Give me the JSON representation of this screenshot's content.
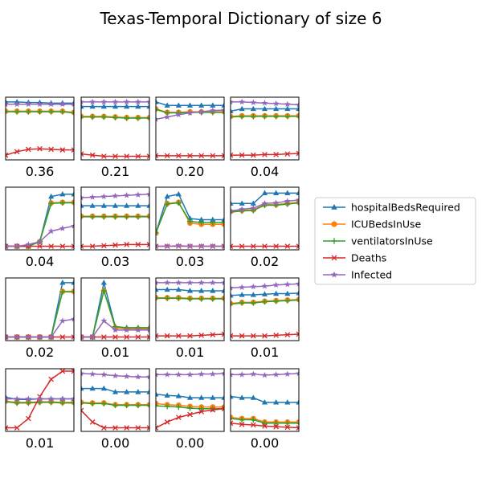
{
  "chart_data": {
    "type": "line",
    "title": "Texas-Temporal Dictionary of size 6",
    "x": [
      0,
      1,
      2,
      3,
      4,
      5,
      6
    ],
    "ylim": [
      0,
      1
    ],
    "grid": false,
    "legend_placement": "right",
    "series_styles": [
      {
        "key": "hospitalBedsRequired",
        "name": "hospitalBedsRequired",
        "color": "#1f77b4",
        "marker": "triangle"
      },
      {
        "key": "ICUBedsInUse",
        "name": "ICUBedsInUse",
        "color": "#ff7f0e",
        "marker": "circle"
      },
      {
        "key": "ventilatorsInUse",
        "name": "ventilatorsInUse",
        "color": "#2ca02c",
        "marker": "plus"
      },
      {
        "key": "Deaths",
        "name": "Deaths",
        "color": "#d62728",
        "marker": "x"
      },
      {
        "key": "Infected",
        "name": "Infected",
        "color": "#9467bd",
        "marker": "star"
      }
    ],
    "panels": [
      {
        "label": "0.36",
        "series": {
          "hospitalBedsRequired": [
            0.96,
            0.96,
            0.95,
            0.95,
            0.94,
            0.94,
            0.94
          ],
          "ICUBedsInUse": [
            0.8,
            0.8,
            0.8,
            0.8,
            0.8,
            0.8,
            0.78
          ],
          "ventilatorsInUse": [
            0.79,
            0.79,
            0.79,
            0.79,
            0.79,
            0.79,
            0.77
          ],
          "Deaths": [
            0.04,
            0.1,
            0.14,
            0.15,
            0.14,
            0.13,
            0.13
          ],
          "Infected": [
            0.92,
            0.92,
            0.92,
            0.92,
            0.92,
            0.92,
            0.92
          ]
        }
      },
      {
        "label": "0.21",
        "series": {
          "hospitalBedsRequired": [
            0.88,
            0.88,
            0.88,
            0.88,
            0.88,
            0.88,
            0.88
          ],
          "ICUBedsInUse": [
            0.71,
            0.71,
            0.71,
            0.7,
            0.69,
            0.69,
            0.69
          ],
          "ventilatorsInUse": [
            0.7,
            0.7,
            0.7,
            0.69,
            0.68,
            0.68,
            0.68
          ],
          "Deaths": [
            0.06,
            0.04,
            0.02,
            0.02,
            0.02,
            0.02,
            0.02
          ],
          "Infected": [
            0.96,
            0.96,
            0.96,
            0.96,
            0.96,
            0.96,
            0.96
          ]
        }
      },
      {
        "label": "0.20",
        "series": {
          "hospitalBedsRequired": [
            0.96,
            0.9,
            0.9,
            0.9,
            0.9,
            0.9,
            0.9
          ],
          "ICUBedsInUse": [
            0.84,
            0.78,
            0.78,
            0.79,
            0.79,
            0.79,
            0.79
          ],
          "ventilatorsInUse": [
            0.83,
            0.77,
            0.77,
            0.78,
            0.78,
            0.78,
            0.78
          ],
          "Deaths": [
            0.03,
            0.03,
            0.03,
            0.03,
            0.03,
            0.03,
            0.03
          ],
          "Infected": [
            0.66,
            0.7,
            0.74,
            0.77,
            0.79,
            0.81,
            0.82
          ]
        }
      },
      {
        "label": "0.04",
        "series": {
          "hospitalBedsRequired": [
            0.8,
            0.84,
            0.84,
            0.84,
            0.84,
            0.84,
            0.84
          ],
          "ICUBedsInUse": [
            0.71,
            0.72,
            0.72,
            0.72,
            0.72,
            0.72,
            0.72
          ],
          "ventilatorsInUse": [
            0.7,
            0.71,
            0.71,
            0.71,
            0.71,
            0.71,
            0.71
          ],
          "Deaths": [
            0.04,
            0.04,
            0.04,
            0.05,
            0.05,
            0.06,
            0.07
          ],
          "Infected": [
            0.96,
            0.96,
            0.95,
            0.94,
            0.93,
            0.92,
            0.91
          ]
        }
      },
      {
        "label": "0.04",
        "series": {
          "hospitalBedsRequired": [
            0.02,
            0.02,
            0.02,
            0.1,
            0.88,
            0.92,
            0.92
          ],
          "ICUBedsInUse": [
            0.02,
            0.02,
            0.02,
            0.1,
            0.77,
            0.78,
            0.78
          ],
          "ventilatorsInUse": [
            0.02,
            0.02,
            0.02,
            0.1,
            0.76,
            0.77,
            0.77
          ],
          "Deaths": [
            0.02,
            0.02,
            0.02,
            0.02,
            0.02,
            0.02,
            0.02
          ],
          "Infected": [
            0.02,
            0.02,
            0.05,
            0.1,
            0.28,
            0.33,
            0.37
          ]
        }
      },
      {
        "label": "0.03",
        "series": {
          "hospitalBedsRequired": [
            0.72,
            0.72,
            0.72,
            0.72,
            0.72,
            0.72,
            0.72
          ],
          "ICUBedsInUse": [
            0.54,
            0.54,
            0.54,
            0.54,
            0.54,
            0.54,
            0.54
          ],
          "ventilatorsInUse": [
            0.53,
            0.53,
            0.53,
            0.53,
            0.53,
            0.53,
            0.53
          ],
          "Deaths": [
            0.02,
            0.02,
            0.03,
            0.04,
            0.05,
            0.05,
            0.05
          ],
          "Infected": [
            0.86,
            0.87,
            0.88,
            0.89,
            0.9,
            0.91,
            0.92
          ]
        }
      },
      {
        "label": "0.03",
        "series": {
          "hospitalBedsRequired": [
            0.25,
            0.88,
            0.92,
            0.5,
            0.48,
            0.48,
            0.48
          ],
          "ICUBedsInUse": [
            0.25,
            0.76,
            0.78,
            0.42,
            0.4,
            0.4,
            0.4
          ],
          "ventilatorsInUse": [
            0.25,
            0.75,
            0.77,
            0.45,
            0.43,
            0.43,
            0.43
          ],
          "Deaths": [
            0.02,
            0.02,
            0.02,
            0.02,
            0.02,
            0.02,
            0.02
          ],
          "Infected": [
            0.02,
            0.02,
            0.03,
            0.02,
            0.02,
            0.02,
            0.02
          ]
        }
      },
      {
        "label": "0.02",
        "series": {
          "hospitalBedsRequired": [
            0.76,
            0.76,
            0.76,
            0.94,
            0.94,
            0.94,
            0.94
          ],
          "ICUBedsInUse": [
            0.62,
            0.64,
            0.65,
            0.74,
            0.74,
            0.76,
            0.78
          ],
          "ventilatorsInUse": [
            0.61,
            0.63,
            0.64,
            0.73,
            0.73,
            0.75,
            0.77
          ],
          "Deaths": [
            0.02,
            0.02,
            0.02,
            0.02,
            0.02,
            0.02,
            0.02
          ],
          "Infected": [
            0.63,
            0.66,
            0.68,
            0.76,
            0.77,
            0.8,
            0.82
          ]
        }
      },
      {
        "label": "0.02",
        "series": {
          "hospitalBedsRequired": [
            0.02,
            0.02,
            0.02,
            0.02,
            0.02,
            0.96,
            0.96
          ],
          "ICUBedsInUse": [
            0.02,
            0.02,
            0.02,
            0.02,
            0.02,
            0.81,
            0.81
          ],
          "ventilatorsInUse": [
            0.02,
            0.02,
            0.02,
            0.02,
            0.02,
            0.8,
            0.8
          ],
          "Deaths": [
            0.02,
            0.02,
            0.02,
            0.02,
            0.02,
            0.02,
            0.02
          ],
          "Infected": [
            0.02,
            0.02,
            0.02,
            0.02,
            0.02,
            0.3,
            0.33
          ]
        }
      },
      {
        "label": "0.01",
        "series": {
          "hospitalBedsRequired": [
            0.02,
            0.02,
            0.96,
            0.2,
            0.18,
            0.18,
            0.18
          ],
          "ICUBedsInUse": [
            0.02,
            0.02,
            0.82,
            0.18,
            0.16,
            0.16,
            0.16
          ],
          "ventilatorsInUse": [
            0.02,
            0.02,
            0.82,
            0.2,
            0.18,
            0.18,
            0.18
          ],
          "Deaths": [
            0.02,
            0.02,
            0.02,
            0.02,
            0.02,
            0.02,
            0.02
          ],
          "Infected": [
            0.02,
            0.02,
            0.3,
            0.14,
            0.14,
            0.14,
            0.14
          ]
        }
      },
      {
        "label": "0.01",
        "series": {
          "hospitalBedsRequired": [
            0.84,
            0.84,
            0.84,
            0.82,
            0.82,
            0.82,
            0.82
          ],
          "ICUBedsInUse": [
            0.7,
            0.7,
            0.7,
            0.69,
            0.69,
            0.69,
            0.69
          ],
          "ventilatorsInUse": [
            0.69,
            0.69,
            0.69,
            0.68,
            0.68,
            0.68,
            0.68
          ],
          "Deaths": [
            0.04,
            0.04,
            0.04,
            0.04,
            0.05,
            0.06,
            0.07
          ],
          "Infected": [
            0.96,
            0.96,
            0.96,
            0.96,
            0.96,
            0.96,
            0.96
          ]
        }
      },
      {
        "label": "0.01",
        "series": {
          "hospitalBedsRequired": [
            0.74,
            0.75,
            0.75,
            0.76,
            0.77,
            0.77,
            0.78
          ],
          "ICUBedsInUse": [
            0.6,
            0.62,
            0.62,
            0.64,
            0.65,
            0.66,
            0.67
          ],
          "ventilatorsInUse": [
            0.59,
            0.61,
            0.61,
            0.63,
            0.64,
            0.65,
            0.66
          ],
          "Deaths": [
            0.04,
            0.04,
            0.04,
            0.04,
            0.05,
            0.06,
            0.07
          ],
          "Infected": [
            0.87,
            0.88,
            0.89,
            0.9,
            0.92,
            0.93,
            0.94
          ]
        }
      },
      {
        "label": "0.01",
        "series": {
          "hospitalBedsRequired": [
            0.55,
            0.51,
            0.51,
            0.52,
            0.52,
            0.52,
            0.52
          ],
          "ICUBedsInUse": [
            0.48,
            0.46,
            0.46,
            0.47,
            0.47,
            0.46,
            0.46
          ],
          "ventilatorsInUse": [
            0.47,
            0.45,
            0.45,
            0.46,
            0.46,
            0.45,
            0.45
          ],
          "Deaths": [
            0.02,
            0.02,
            0.18,
            0.56,
            0.86,
            1.0,
            1.0
          ],
          "Infected": [
            0.52,
            0.52,
            0.52,
            0.52,
            0.52,
            0.52,
            0.52
          ]
        }
      },
      {
        "label": "0.00",
        "series": {
          "hospitalBedsRequired": [
            0.7,
            0.7,
            0.7,
            0.64,
            0.64,
            0.64,
            0.64
          ],
          "ICUBedsInUse": [
            0.46,
            0.45,
            0.45,
            0.42,
            0.42,
            0.42,
            0.42
          ],
          "ventilatorsInUse": [
            0.45,
            0.44,
            0.44,
            0.41,
            0.41,
            0.41,
            0.41
          ],
          "Deaths": [
            0.32,
            0.12,
            0.02,
            0.02,
            0.02,
            0.02,
            0.02
          ],
          "Infected": [
            0.96,
            0.95,
            0.94,
            0.92,
            0.91,
            0.9,
            0.9
          ]
        }
      },
      {
        "label": "0.00",
        "series": {
          "hospitalBedsRequired": [
            0.6,
            0.58,
            0.57,
            0.54,
            0.54,
            0.54,
            0.54
          ],
          "ICUBedsInUse": [
            0.44,
            0.42,
            0.41,
            0.39,
            0.38,
            0.38,
            0.38
          ],
          "ventilatorsInUse": [
            0.4,
            0.39,
            0.38,
            0.36,
            0.35,
            0.35,
            0.35
          ],
          "Deaths": [
            0.02,
            0.12,
            0.2,
            0.25,
            0.3,
            0.33,
            0.35
          ],
          "Infected": [
            0.94,
            0.94,
            0.94,
            0.94,
            0.95,
            0.95,
            0.96
          ]
        }
      },
      {
        "label": "0.00",
        "series": {
          "hospitalBedsRequired": [
            0.56,
            0.54,
            0.54,
            0.46,
            0.46,
            0.46,
            0.46
          ],
          "ICUBedsInUse": [
            0.2,
            0.18,
            0.18,
            0.12,
            0.12,
            0.12,
            0.12
          ],
          "ventilatorsInUse": [
            0.18,
            0.16,
            0.16,
            0.1,
            0.1,
            0.1,
            0.1
          ],
          "Deaths": [
            0.1,
            0.08,
            0.07,
            0.05,
            0.04,
            0.03,
            0.02
          ],
          "Infected": [
            0.94,
            0.94,
            0.95,
            0.93,
            0.94,
            0.95,
            0.96
          ]
        }
      }
    ]
  }
}
